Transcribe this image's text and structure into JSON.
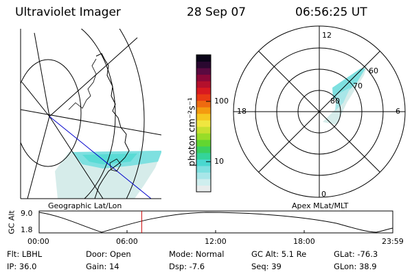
{
  "header": {
    "instrument": "Ultraviolet Imager",
    "date": "28 Sep 07",
    "time": "06:56:25 UT"
  },
  "geo_map": {
    "label": "Geographic Lat/Lon"
  },
  "polar_plot": {
    "label": "Apex MLat/MLT",
    "mlt_labels": {
      "top": "12",
      "left": "18",
      "right": "6",
      "bottom": "0"
    },
    "lat_labels": [
      "60",
      "70",
      "80"
    ]
  },
  "colorbar": {
    "unit_label": "photon cm⁻²s⁻¹",
    "ticks": [
      "100",
      "10"
    ],
    "colors": [
      "#e8ecec",
      "#cfeeee",
      "#a8e6e8",
      "#7ee0e0",
      "#4ad8d0",
      "#34d49a",
      "#3ad060",
      "#62d630",
      "#98dc28",
      "#c8e030",
      "#f0e640",
      "#f6c820",
      "#f49a10",
      "#ee6a10",
      "#e83a14",
      "#d81a20",
      "#b4102c",
      "#8a0838",
      "#5a0a40",
      "#2a0830",
      "#0a0418"
    ]
  },
  "altitude_plot": {
    "axis_label": "GC Alt",
    "y_ticks": [
      "9.0",
      "1.8"
    ],
    "x_ticks": [
      "00:00",
      "06:00",
      "12:00",
      "18:00",
      "23:59"
    ],
    "current_time_fraction": 0.29
  },
  "info": {
    "flt": "Flt: LBHL",
    "ip": "IP: 36.0",
    "door": "Door: Open",
    "gain": "Gain: 14",
    "mode": "Mode: Normal",
    "dsp": "Dsp:    -7.6",
    "gc_alt": "GC Alt: 5.1 Re",
    "seq": "Seq: 39",
    "glat": "GLat: -76.3",
    "glon": "GLon:  38.9"
  }
}
